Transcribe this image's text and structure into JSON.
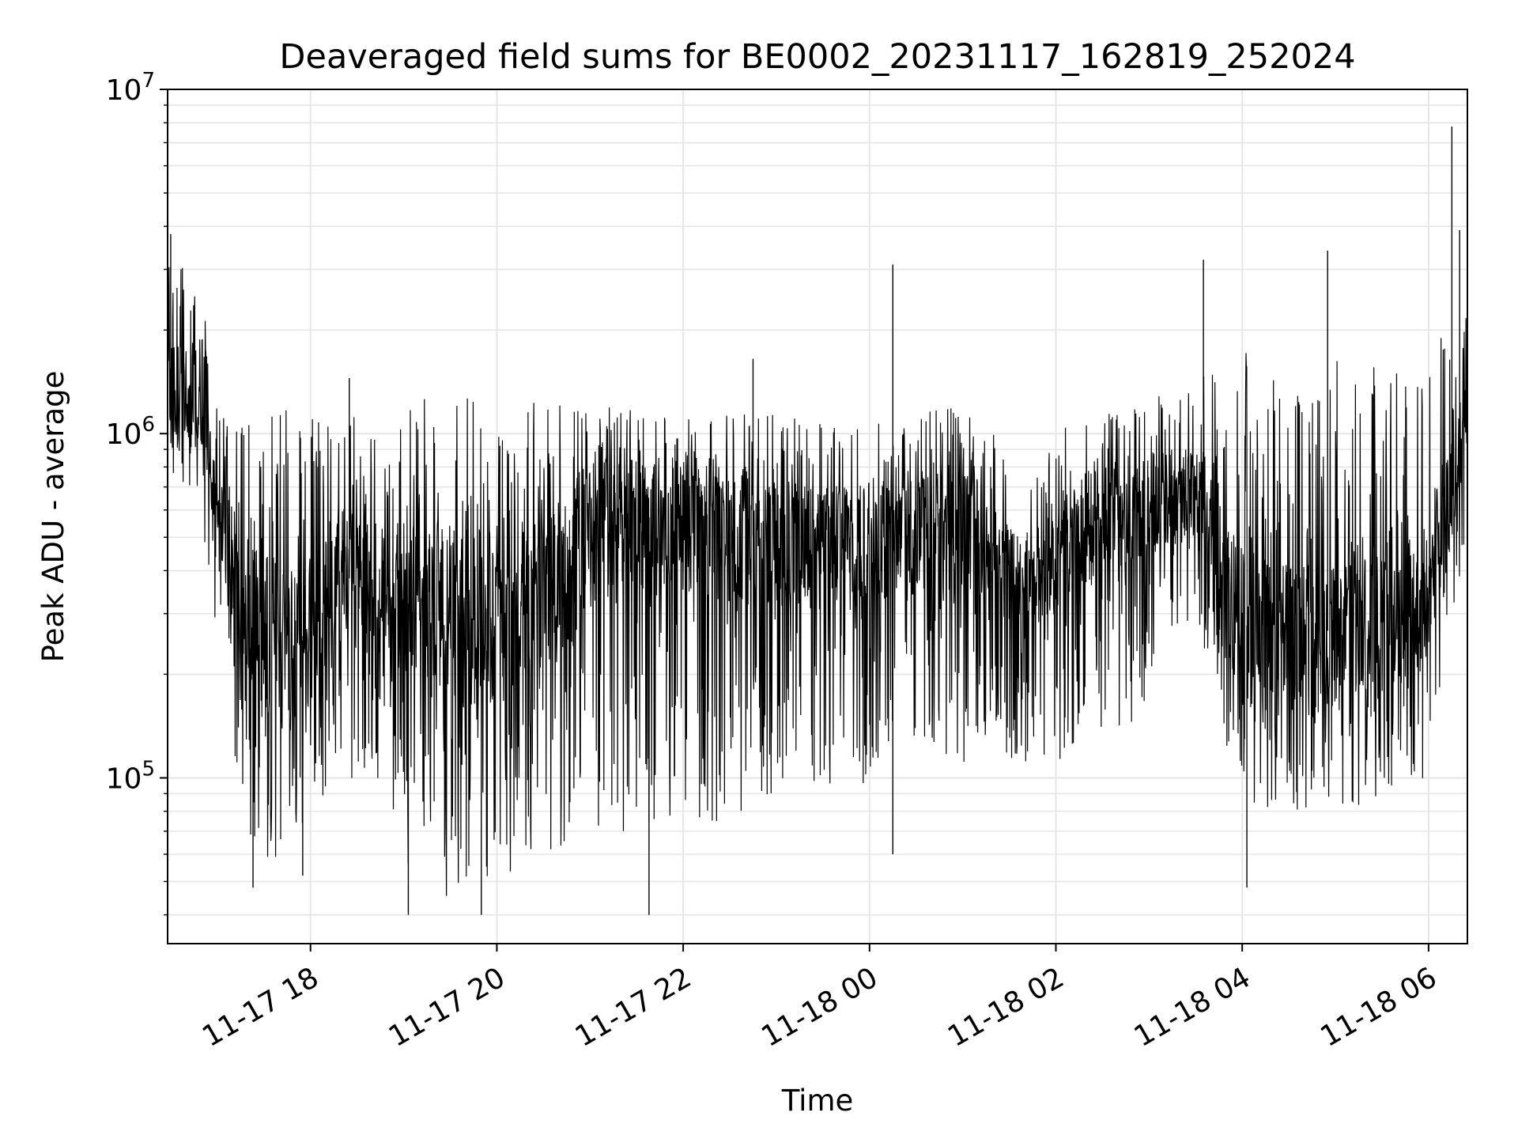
{
  "chart_data": {
    "type": "line",
    "title": "Deaveraged field sums for BE0002_20231117_162819_252024",
    "xlabel": "Time",
    "ylabel": "Peak ADU - average",
    "xlim": [
      "2023-11-17T16:28",
      "2023-11-18T06:25"
    ],
    "ylim": [
      33000,
      10000000
    ],
    "yscale": "log",
    "y_ticks": [
      {
        "value": 100000,
        "base": "10",
        "exp": "5"
      },
      {
        "value": 1000000,
        "base": "10",
        "exp": "6"
      },
      {
        "value": 10000000,
        "base": "10",
        "exp": "7"
      }
    ],
    "x_ticks": [
      {
        "value": "2023-11-17T18:00",
        "label": "11-17 18"
      },
      {
        "value": "2023-11-17T20:00",
        "label": "11-17 20"
      },
      {
        "value": "2023-11-17T22:00",
        "label": "11-17 22"
      },
      {
        "value": "2023-11-18T00:00",
        "label": "11-18 00"
      },
      {
        "value": "2023-11-18T02:00",
        "label": "11-18 02"
      },
      {
        "value": "2023-11-18T04:00",
        "label": "11-18 04"
      },
      {
        "value": "2023-11-18T06:00",
        "label": "11-18 06"
      }
    ],
    "grid": true,
    "legend": "none",
    "line_color": "#000000",
    "series": [
      {
        "envelope": [
          {
            "t": "2023-11-17T16:28",
            "low": 800000,
            "mid": 1500000,
            "high": 3800000
          },
          {
            "t": "2023-11-17T16:50",
            "low": 550000,
            "mid": 1200000,
            "high": 2700000
          },
          {
            "t": "2023-11-17T17:00",
            "low": 260000,
            "mid": 600000,
            "high": 1150000
          },
          {
            "t": "2023-11-17T17:20",
            "low": 60000,
            "mid": 300000,
            "high": 1100000
          },
          {
            "t": "2023-11-17T17:50",
            "low": 55000,
            "mid": 230000,
            "high": 1250000
          },
          {
            "t": "2023-11-17T18:20",
            "low": 90000,
            "mid": 380000,
            "high": 1200000
          },
          {
            "t": "2023-11-17T18:45",
            "low": 100000,
            "mid": 380000,
            "high": 1000000
          },
          {
            "t": "2023-11-17T19:10",
            "low": 45000,
            "mid": 300000,
            "high": 1300000
          },
          {
            "t": "2023-11-17T19:50",
            "low": 45000,
            "mid": 300000,
            "high": 1300000
          },
          {
            "t": "2023-11-17T20:30",
            "low": 60000,
            "mid": 330000,
            "high": 1300000
          },
          {
            "t": "2023-11-17T21:10",
            "low": 70000,
            "mid": 600000,
            "high": 1200000
          },
          {
            "t": "2023-11-17T22:00",
            "low": 70000,
            "mid": 550000,
            "high": 1150000
          },
          {
            "t": "2023-11-17T22:50",
            "low": 80000,
            "mid": 500000,
            "high": 1200000
          },
          {
            "t": "2023-11-17T23:40",
            "low": 90000,
            "mid": 450000,
            "high": 1050000
          },
          {
            "t": "2023-11-18T00:20",
            "low": 100000,
            "mid": 500000,
            "high": 1100000
          },
          {
            "t": "2023-11-18T01:00",
            "low": 110000,
            "mid": 550000,
            "high": 1300000
          },
          {
            "t": "2023-11-18T01:40",
            "low": 110000,
            "mid": 350000,
            "high": 800000
          },
          {
            "t": "2023-11-18T02:10",
            "low": 110000,
            "mid": 500000,
            "high": 1100000
          },
          {
            "t": "2023-11-18T02:50",
            "low": 140000,
            "mid": 600000,
            "high": 1200000
          },
          {
            "t": "2023-11-18T03:30",
            "low": 300000,
            "mid": 700000,
            "high": 1500000
          },
          {
            "t": "2023-11-18T04:00",
            "low": 80000,
            "mid": 280000,
            "high": 1800000
          },
          {
            "t": "2023-11-18T04:40",
            "low": 80000,
            "mid": 250000,
            "high": 1600000
          },
          {
            "t": "2023-11-18T05:20",
            "low": 80000,
            "mid": 300000,
            "high": 1700000
          },
          {
            "t": "2023-11-18T05:55",
            "low": 90000,
            "mid": 300000,
            "high": 1500000
          },
          {
            "t": "2023-11-18T06:25",
            "low": 500000,
            "mid": 1100000,
            "high": 2600000
          }
        ],
        "spikes": [
          {
            "t": "2023-11-17T16:30",
            "value": 3800000
          },
          {
            "t": "2023-11-17T17:23",
            "value": 48000
          },
          {
            "t": "2023-11-17T17:55",
            "value": 52000
          },
          {
            "t": "2023-11-17T18:25",
            "value": 1450000
          },
          {
            "t": "2023-11-17T19:03",
            "value": 40000
          },
          {
            "t": "2023-11-17T19:50",
            "value": 40000
          },
          {
            "t": "2023-11-17T21:38",
            "value": 40000
          },
          {
            "t": "2023-11-17T22:45",
            "value": 1650000
          },
          {
            "t": "2023-11-18T00:15",
            "value": 3100000
          },
          {
            "t": "2023-11-18T00:15",
            "value": 60000
          },
          {
            "t": "2023-11-18T03:35",
            "value": 3200000
          },
          {
            "t": "2023-11-18T04:03",
            "value": 48000
          },
          {
            "t": "2023-11-18T04:55",
            "value": 3400000
          },
          {
            "t": "2023-11-18T06:15",
            "value": 7800000
          },
          {
            "t": "2023-11-18T06:20",
            "value": 3900000
          }
        ]
      }
    ]
  }
}
